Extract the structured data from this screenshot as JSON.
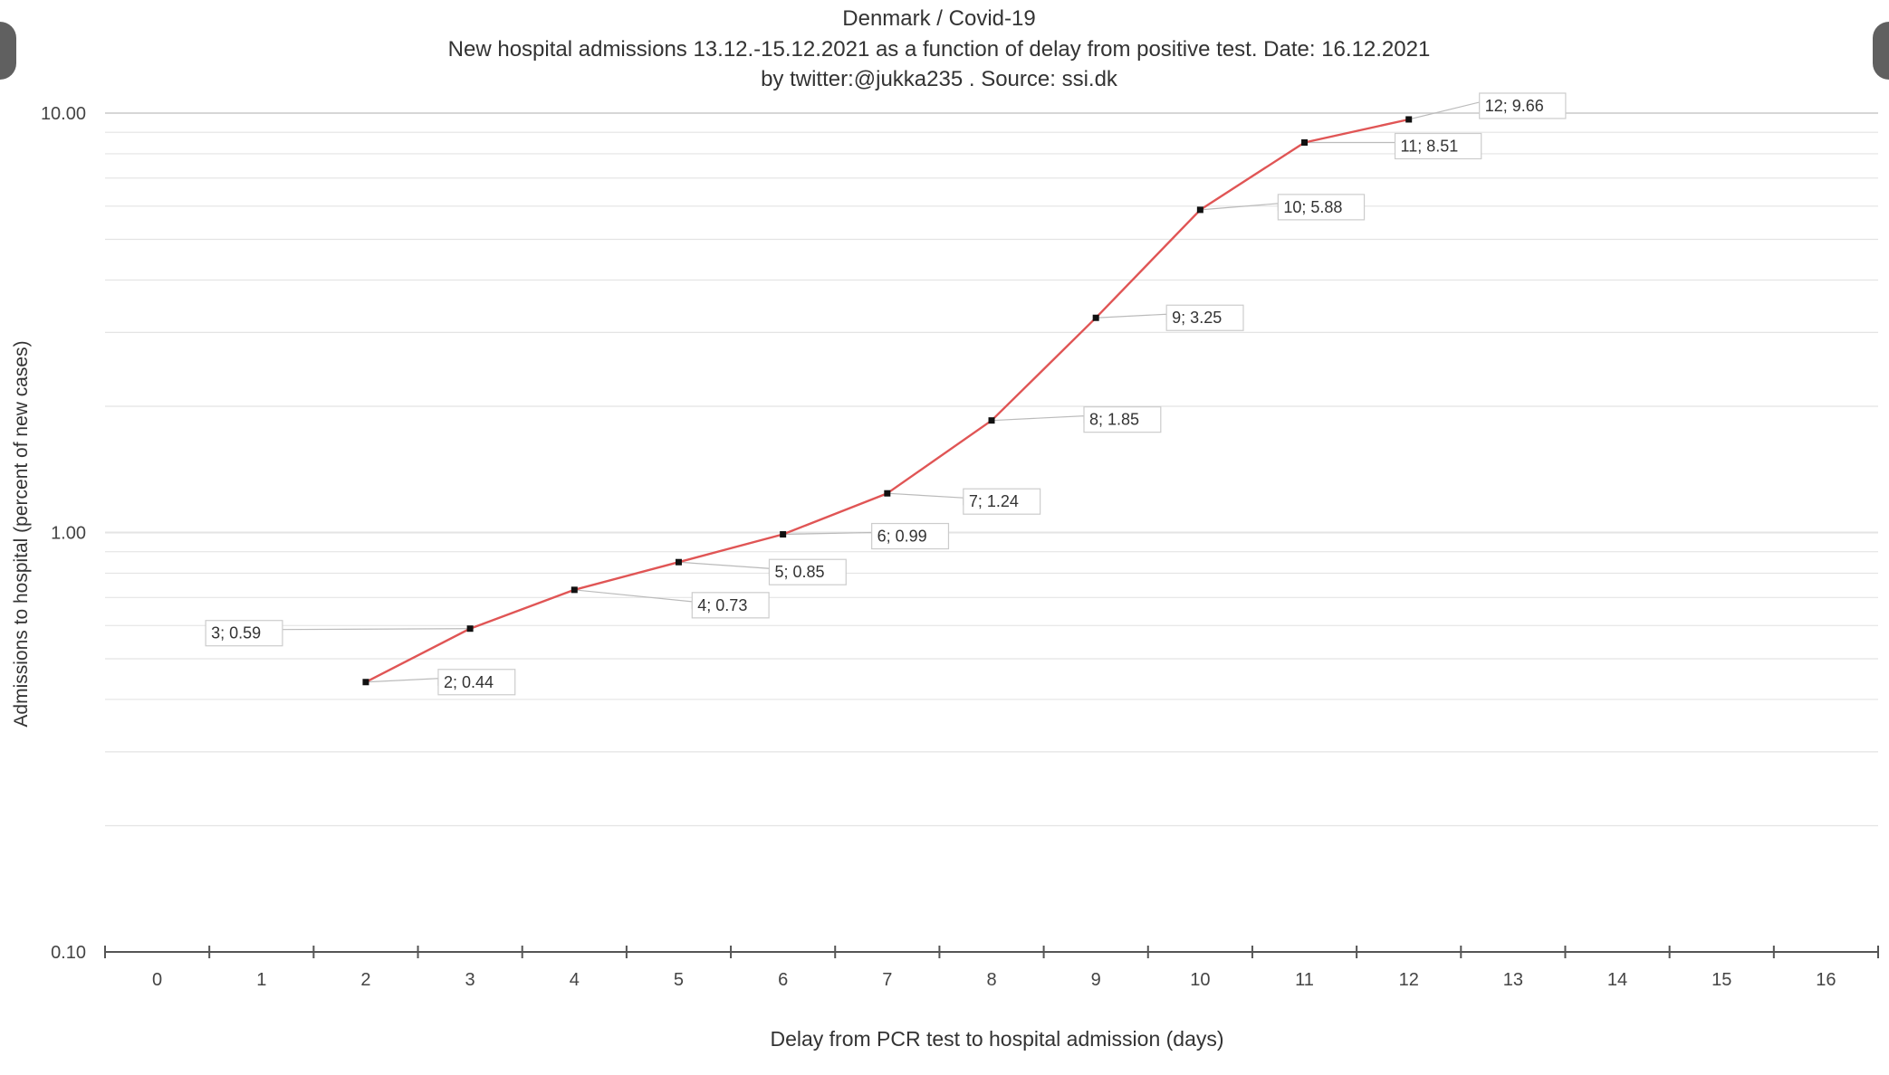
{
  "chart_data": {
    "type": "line",
    "title": "Denmark / Covid-19",
    "subtitle": "New hospital admissions 13.12.-15.12.2021 as a function of delay from positive test.  Date: 16.12.2021",
    "credit": "by twitter:@jukka235 . Source: ssi.dk",
    "xlabel": "Delay from PCR test to hospital admission (days)",
    "ylabel": "Admissions to hospital (percent of new cases)",
    "y_scale": "log",
    "ylim": [
      0.1,
      10
    ],
    "xlim": [
      -0.5,
      16.5
    ],
    "y_ticks": [
      "0.10",
      "1.00",
      "10.00"
    ],
    "x_ticks": [
      "0",
      "1",
      "2",
      "3",
      "4",
      "5",
      "6",
      "7",
      "8",
      "9",
      "10",
      "11",
      "12",
      "13",
      "14",
      "15",
      "16"
    ],
    "grid": "horizontal major and minor",
    "line_color": "#e05555",
    "marker_color": "#111111",
    "points": [
      {
        "x": 2,
        "y": 0.44,
        "label": "2; 0.44"
      },
      {
        "x": 3,
        "y": 0.59,
        "label": "3; 0.59"
      },
      {
        "x": 4,
        "y": 0.73,
        "label": "4; 0.73"
      },
      {
        "x": 5,
        "y": 0.85,
        "label": "5; 0.85"
      },
      {
        "x": 6,
        "y": 0.99,
        "label": "6; 0.99"
      },
      {
        "x": 7,
        "y": 1.24,
        "label": "7; 1.24"
      },
      {
        "x": 8,
        "y": 1.85,
        "label": "8; 1.85"
      },
      {
        "x": 9,
        "y": 3.25,
        "label": "9; 3.25"
      },
      {
        "x": 10,
        "y": 5.88,
        "label": "10; 5.88"
      },
      {
        "x": 11,
        "y": 8.51,
        "label": "11; 8.51"
      },
      {
        "x": 12,
        "y": 9.66,
        "label": "12; 9.66"
      }
    ]
  }
}
